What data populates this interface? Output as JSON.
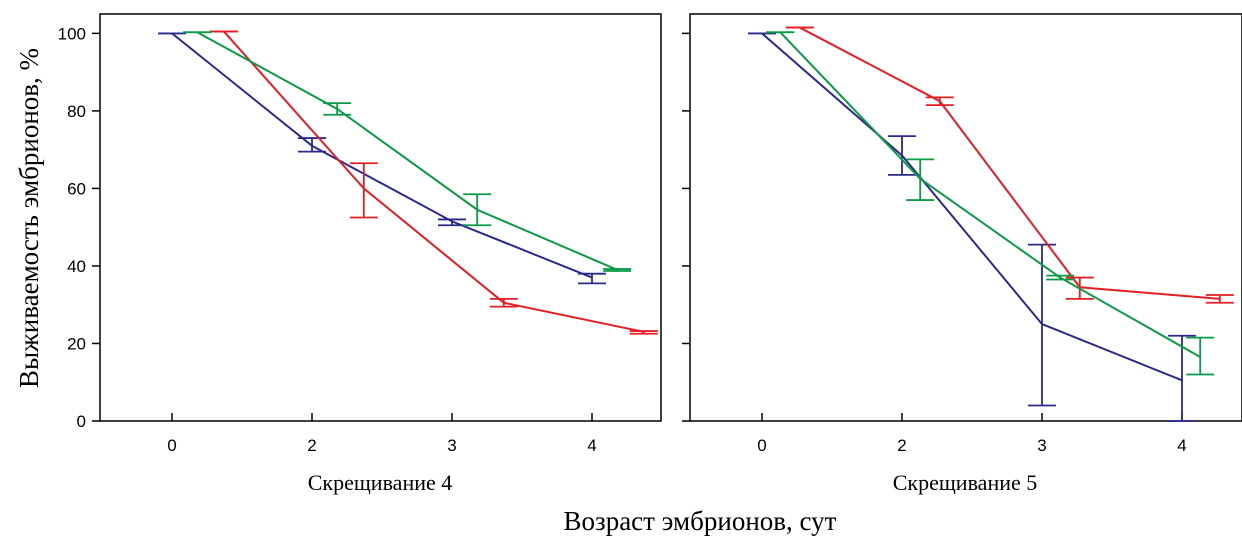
{
  "chart_data": {
    "type": "line",
    "ylabel": "Выживаемость эмбрионов, %",
    "xlabel": "Возраст эмбрионов, сут",
    "ylim": [
      0,
      105
    ],
    "yticks": [
      0,
      20,
      40,
      60,
      80,
      100
    ],
    "xticks": [
      "0",
      "2",
      "3",
      "4"
    ],
    "colors": {
      "blue": "#2b2a8c",
      "red": "#e31e24",
      "green": "#0a9a46"
    },
    "panels": [
      {
        "title": "Скрещивание 4",
        "series": [
          {
            "color": "blue",
            "x": [
              0,
              2,
              3,
              4
            ],
            "y": [
              100,
              71,
              51.5,
              37
            ],
            "err_low": [
              100,
              69.5,
              50.5,
              35.5
            ],
            "err_high": [
              100,
              73,
              52,
              38
            ]
          },
          {
            "color": "red",
            "x": [
              0.37,
              2.37,
              3.37,
              4.37
            ],
            "y": [
              100.5,
              60,
              30.5,
              23
            ],
            "err_low": [
              100.5,
              52.5,
              29.5,
              22.5
            ],
            "err_high": [
              100.5,
              66.5,
              31.5,
              23.2
            ]
          },
          {
            "color": "green",
            "x": [
              0.18,
              2.18,
              3.18,
              4.18
            ],
            "y": [
              100.3,
              80.5,
              54.5,
              39
            ],
            "err_low": [
              100.3,
              79,
              50.5,
              38.7
            ],
            "err_high": [
              100.3,
              82,
              58.5,
              39.2
            ]
          }
        ]
      },
      {
        "title": "Скрещивание 5",
        "series": [
          {
            "color": "blue",
            "x": [
              0,
              2,
              3,
              4
            ],
            "y": [
              100,
              68.5,
              25,
              10.5
            ],
            "err_low": [
              100,
              63.5,
              4,
              0
            ],
            "err_high": [
              100,
              73.5,
              45.5,
              22
            ]
          },
          {
            "color": "red",
            "x": [
              0.27,
              2.27,
              3.27,
              4.27
            ],
            "y": [
              101.5,
              82.5,
              34.5,
              31.5
            ],
            "err_low": [
              101.5,
              81.5,
              31.5,
              30.5
            ],
            "err_high": [
              101.5,
              83.5,
              37,
              32.5
            ]
          },
          {
            "color": "green",
            "x": [
              0.13,
              2.13,
              3.13,
              4.13
            ],
            "y": [
              100.3,
              62.5,
              37,
              16.5
            ],
            "err_low": [
              100.3,
              57,
              36.5,
              12
            ],
            "err_high": [
              100.3,
              67.5,
              37.5,
              21.5
            ]
          }
        ]
      }
    ]
  }
}
